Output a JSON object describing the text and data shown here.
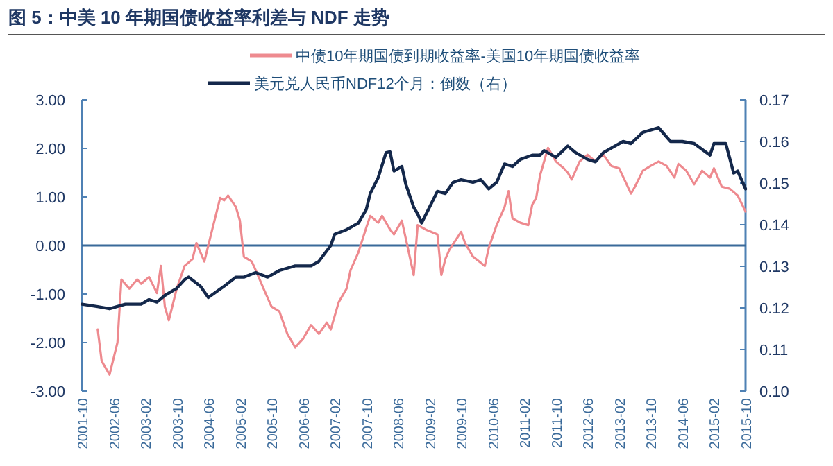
{
  "chart_data": {
    "type": "line",
    "title": "图 5：中美 10 年期国债收益率利差与 NDF 走势",
    "legend": "top",
    "xlim": [
      "2001-10",
      "2015-10"
    ],
    "xticks": [
      "2001-10",
      "2002-06",
      "2003-02",
      "2003-10",
      "2004-06",
      "2005-02",
      "2005-10",
      "2006-06",
      "2007-02",
      "2007-10",
      "2008-06",
      "2009-02",
      "2009-10",
      "2010-06",
      "2011-02",
      "2011-10",
      "2012-06",
      "2013-02",
      "2013-10",
      "2014-06",
      "2015-02",
      "2015-10"
    ],
    "ylim": [
      -3,
      3
    ],
    "yticks": [
      {
        "value": -3,
        "label": "-3.00"
      },
      {
        "value": -2,
        "label": "-2.00"
      },
      {
        "value": -1,
        "label": "-1.00"
      },
      {
        "value": 0,
        "label": "0.00"
      },
      {
        "value": 1,
        "label": "1.00"
      },
      {
        "value": 2,
        "label": "2.00"
      },
      {
        "value": 3,
        "label": "3.00"
      }
    ],
    "ref_lines": [
      {
        "axis": "y",
        "value": 0,
        "color": "#3a6a9a"
      }
    ],
    "y2lim": [
      0.1,
      0.17
    ],
    "y2ticks": [
      {
        "value": 0.1,
        "label": "0.10"
      },
      {
        "value": 0.11,
        "label": "0.11"
      },
      {
        "value": 0.12,
        "label": "0.12"
      },
      {
        "value": 0.13,
        "label": "0.13"
      },
      {
        "value": 0.14,
        "label": "0.14"
      },
      {
        "value": 0.15,
        "label": "0.15"
      },
      {
        "value": 0.16,
        "label": "0.16"
      },
      {
        "value": 0.17,
        "label": "0.17"
      }
    ],
    "series": [
      {
        "name": "中债10年期国债到期收益率-美国10年期国债收益率",
        "color": "#ee8a8f",
        "axis": "y",
        "x": [
          "2002-02",
          "2002-03",
          "2002-05",
          "2002-07",
          "2002-08",
          "2002-10",
          "2002-12",
          "2003-01",
          "2003-03",
          "2003-05",
          "2003-06",
          "2003-07",
          "2003-08",
          "2003-10",
          "2003-12",
          "2004-02",
          "2004-03",
          "2004-05",
          "2004-07",
          "2004-09",
          "2004-10",
          "2004-11",
          "2005-01",
          "2005-02",
          "2005-03",
          "2005-05",
          "2005-06",
          "2005-08",
          "2005-10",
          "2005-12",
          "2006-02",
          "2006-04",
          "2006-06",
          "2006-08",
          "2006-10",
          "2006-12",
          "2007-01",
          "2007-03",
          "2007-05",
          "2007-06",
          "2007-08",
          "2007-10",
          "2007-11",
          "2008-01",
          "2008-02",
          "2008-04",
          "2008-05",
          "2008-07",
          "2008-08",
          "2008-10",
          "2008-11",
          "2009-01",
          "2009-04",
          "2009-05",
          "2009-06",
          "2009-07",
          "2009-10",
          "2009-11",
          "2010-01",
          "2010-04",
          "2010-05",
          "2010-07",
          "2010-09",
          "2010-10",
          "2010-11",
          "2011-01",
          "2011-03",
          "2011-04",
          "2011-05",
          "2011-06",
          "2011-08",
          "2011-10",
          "2011-12",
          "2012-01",
          "2012-02",
          "2012-04",
          "2012-06",
          "2012-08",
          "2012-10",
          "2012-12",
          "2013-02",
          "2013-05",
          "2013-06",
          "2013-08",
          "2013-10",
          "2013-12",
          "2014-02",
          "2014-04",
          "2014-05",
          "2014-07",
          "2014-09",
          "2014-11",
          "2015-01",
          "2015-02",
          "2015-04",
          "2015-06",
          "2015-08",
          "2015-10"
        ],
        "values": [
          -1.73,
          -2.38,
          -2.66,
          -2.0,
          -0.7,
          -0.89,
          -0.7,
          -0.79,
          -0.65,
          -0.98,
          -0.42,
          -1.26,
          -1.54,
          -0.89,
          -0.42,
          -0.28,
          0.05,
          -0.33,
          0.33,
          0.98,
          0.93,
          1.03,
          0.79,
          0.51,
          -0.23,
          -0.33,
          -0.51,
          -0.89,
          -1.26,
          -1.36,
          -1.82,
          -2.1,
          -1.92,
          -1.64,
          -1.82,
          -1.59,
          -1.73,
          -1.17,
          -0.89,
          -0.51,
          -0.14,
          0.37,
          0.61,
          0.47,
          0.61,
          0.33,
          0.23,
          0.51,
          0.14,
          -0.61,
          0.42,
          0.33,
          0.23,
          -0.61,
          -0.28,
          -0.09,
          0.28,
          0.05,
          -0.23,
          -0.42,
          -0.05,
          0.42,
          0.79,
          1.12,
          0.56,
          0.47,
          0.42,
          0.84,
          0.98,
          1.45,
          2.01,
          1.73,
          1.59,
          1.5,
          1.36,
          1.73,
          1.87,
          1.73,
          1.87,
          1.64,
          1.59,
          1.07,
          1.21,
          1.54,
          1.64,
          1.73,
          1.64,
          1.4,
          1.68,
          1.54,
          1.26,
          1.54,
          1.4,
          1.59,
          1.21,
          1.17,
          1.03,
          0.7
        ]
      },
      {
        "name": "美元兑人民币NDF12个月：倒数（右）",
        "color": "#14284b",
        "axis": "y2",
        "x": [
          "2001-10",
          "2002-02",
          "2002-05",
          "2002-09",
          "2003-01",
          "2003-03",
          "2003-05",
          "2003-07",
          "2003-10",
          "2003-12",
          "2004-01",
          "2004-04",
          "2004-06",
          "2004-10",
          "2005-01",
          "2005-03",
          "2005-06",
          "2005-09",
          "2005-12",
          "2006-04",
          "2006-08",
          "2006-10",
          "2007-01",
          "2007-02",
          "2007-05",
          "2007-08",
          "2007-10",
          "2007-11",
          "2008-01",
          "2008-03",
          "2008-04",
          "2008-05",
          "2008-07",
          "2008-08",
          "2008-10",
          "2008-11",
          "2008-12",
          "2009-02",
          "2009-04",
          "2009-06",
          "2009-08",
          "2009-10",
          "2010-01",
          "2010-03",
          "2010-05",
          "2010-07",
          "2010-09",
          "2010-11",
          "2011-01",
          "2011-04",
          "2011-06",
          "2011-07",
          "2011-10",
          "2012-01",
          "2012-03",
          "2012-06",
          "2012-08",
          "2012-10",
          "2012-12",
          "2013-03",
          "2013-05",
          "2013-08",
          "2013-12",
          "2014-03",
          "2014-06",
          "2014-09",
          "2015-01",
          "2015-02",
          "2015-05",
          "2015-07",
          "2015-08",
          "2015-10"
        ],
        "values": [
          0.1209,
          0.1203,
          0.1198,
          0.1209,
          0.1209,
          0.122,
          0.1214,
          0.123,
          0.1247,
          0.1268,
          0.1274,
          0.1252,
          0.1225,
          0.1252,
          0.1274,
          0.1274,
          0.1285,
          0.1274,
          0.129,
          0.1301,
          0.1301,
          0.1312,
          0.135,
          0.1377,
          0.1388,
          0.1404,
          0.1437,
          0.1475,
          0.1513,
          0.1573,
          0.1575,
          0.1529,
          0.154,
          0.1497,
          0.1442,
          0.1426,
          0.1404,
          0.1442,
          0.148,
          0.1475,
          0.1502,
          0.1508,
          0.1502,
          0.1508,
          0.1486,
          0.1502,
          0.1546,
          0.154,
          0.1557,
          0.1567,
          0.1567,
          0.1578,
          0.1562,
          0.1589,
          0.1573,
          0.1557,
          0.1551,
          0.1573,
          0.1584,
          0.16,
          0.1595,
          0.1622,
          0.1633,
          0.16,
          0.16,
          0.1595,
          0.1567,
          0.1595,
          0.1595,
          0.1524,
          0.1529,
          0.1486
        ]
      }
    ]
  }
}
